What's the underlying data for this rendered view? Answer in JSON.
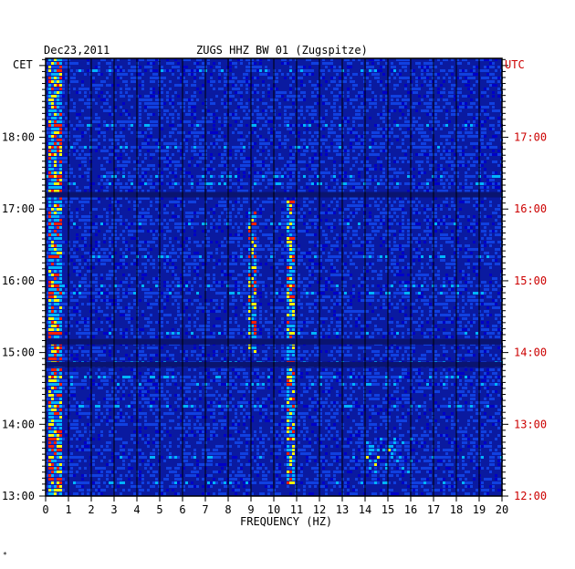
{
  "header": {
    "date": "Dec23,2011",
    "station": "ZUGS HHZ BW 01 (Zugspitze)",
    "left_tz": "CET",
    "right_tz": "UTC"
  },
  "footer": {
    "mark": "*"
  },
  "chart_data": {
    "type": "heatmap",
    "title": "ZUGS HHZ BW 01 (Zugspitze)",
    "date": "Dec23,2011",
    "xlabel": "FREQUENCY (HZ)",
    "xlim": [
      0,
      20
    ],
    "x_ticks": [
      "0",
      "1",
      "2",
      "3",
      "4",
      "5",
      "6",
      "7",
      "8",
      "9",
      "10",
      "11",
      "12",
      "13",
      "14",
      "15",
      "16",
      "17",
      "18",
      "19",
      "20"
    ],
    "left_axis_label": "CET",
    "left_ticks": [
      "13:00",
      "14:00",
      "15:00",
      "16:00",
      "17:00",
      "18:00"
    ],
    "right_axis_label": "UTC",
    "right_ticks": [
      "12:00",
      "13:00",
      "14:00",
      "15:00",
      "16:00",
      "17:00"
    ],
    "time_range_cet": [
      "13:00",
      "19:06"
    ],
    "colors": {
      "background": "#0a1aa0",
      "low": "#0000c8",
      "mid": "#00b4ff",
      "high": "#ffff00",
      "peak": "#ff2000",
      "right_axis": "#cc0000"
    },
    "features": [
      {
        "name": "low-frequency energy",
        "freq_hz": [
          0.1,
          0.6
        ],
        "intensity": "high"
      },
      {
        "name": "spectral line",
        "freq_hz": 9.0,
        "time_cet": [
          "15:00",
          "17:00"
        ]
      },
      {
        "name": "spectral line",
        "freq_hz": 10.7,
        "time_cet": [
          "13:10",
          "17:10"
        ]
      },
      {
        "name": "data gap",
        "time_cet": "17:12"
      },
      {
        "name": "data gap",
        "time_cet": "15:09"
      },
      {
        "name": "data gap",
        "time_cet": "14:50"
      },
      {
        "name": "broadband burst",
        "freq_hz": [
          14,
          16
        ],
        "time_cet": [
          "13:20",
          "13:50"
        ]
      }
    ]
  }
}
